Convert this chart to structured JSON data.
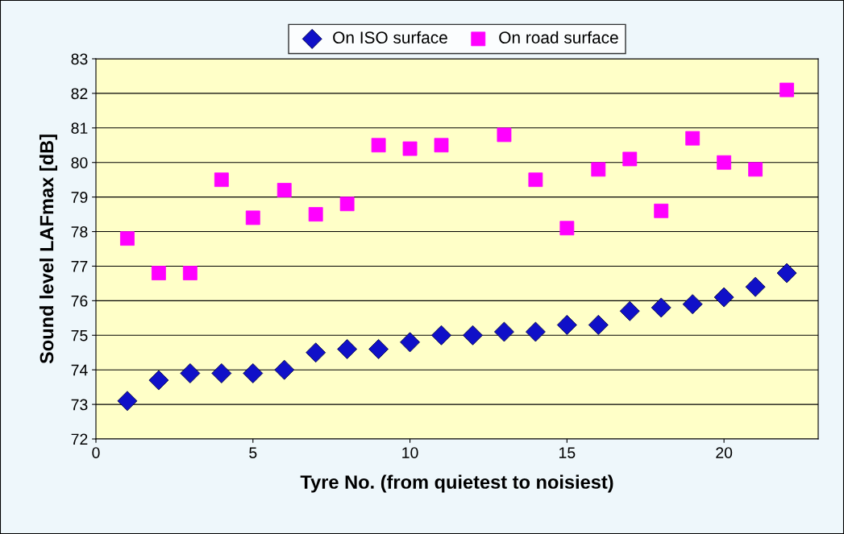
{
  "chart_data": {
    "type": "scatter",
    "xlabel": "Tyre No. (from quietest to noisiest)",
    "ylabel": "Sound level LAFmax [dB]",
    "x": [
      1,
      2,
      3,
      4,
      5,
      6,
      7,
      8,
      9,
      10,
      11,
      12,
      13,
      14,
      15,
      16,
      17,
      18,
      19,
      20,
      21,
      22
    ],
    "series": [
      {
        "name": "On ISO surface",
        "color": "#1010c8",
        "marker": "diamond",
        "values": [
          73.1,
          73.7,
          73.9,
          73.9,
          73.9,
          74.0,
          74.5,
          74.6,
          74.6,
          74.8,
          75.0,
          75.0,
          75.1,
          75.1,
          75.3,
          75.3,
          75.7,
          75.8,
          75.9,
          76.1,
          76.4,
          76.8
        ]
      },
      {
        "name": "On road surface",
        "color": "#ff00ff",
        "marker": "square",
        "values": [
          77.8,
          76.8,
          76.8,
          79.5,
          78.4,
          79.2,
          78.5,
          78.8,
          80.5,
          80.4,
          80.5,
          null,
          80.8,
          79.5,
          78.1,
          79.8,
          80.1,
          78.6,
          80.7,
          80.0,
          79.8,
          82.1
        ]
      }
    ],
    "xlim": [
      0,
      23
    ],
    "xticks": [
      0,
      5,
      10,
      15,
      20
    ],
    "ylim": [
      72,
      83
    ],
    "yticks": [
      72,
      73,
      74,
      75,
      76,
      77,
      78,
      79,
      80,
      81,
      82,
      83
    ],
    "grid": "y",
    "legend": "top"
  }
}
